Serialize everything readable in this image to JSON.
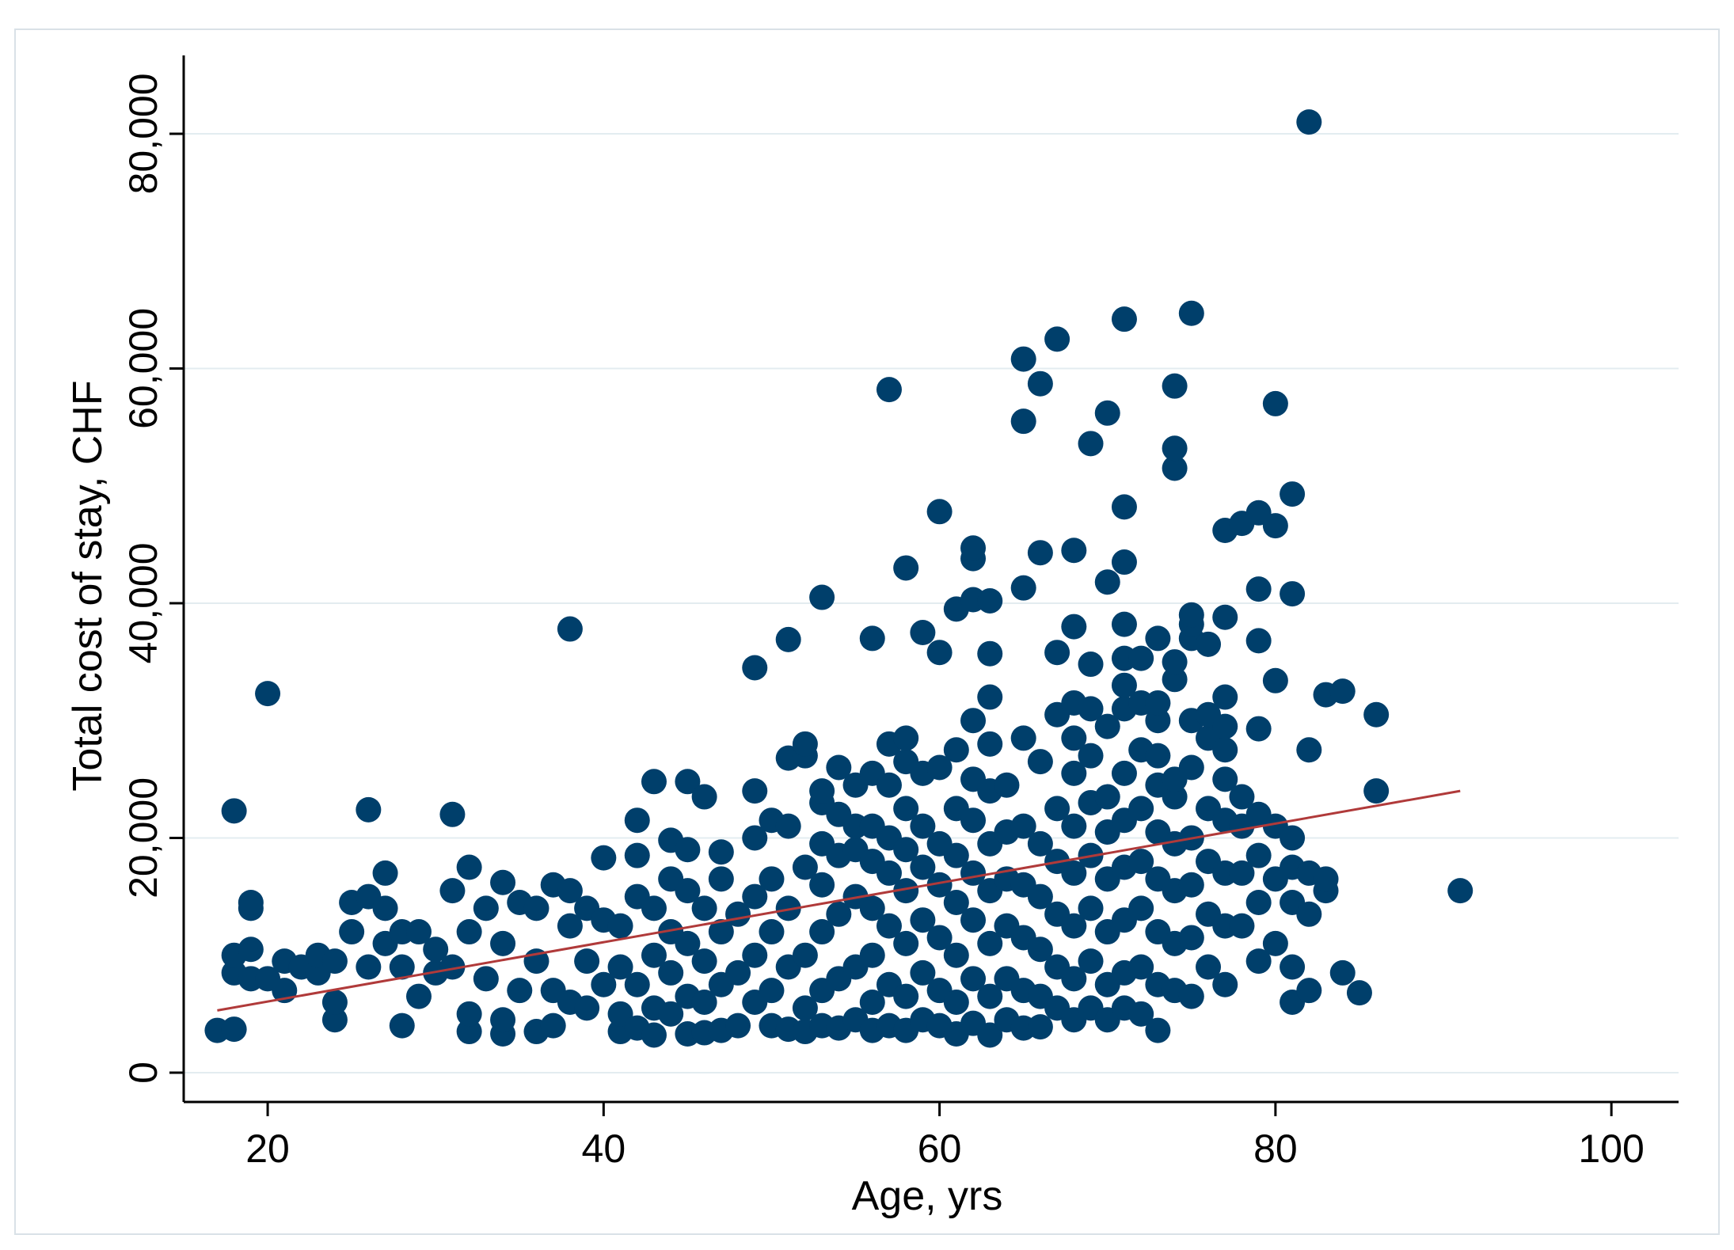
{
  "chart_data": {
    "type": "scatter",
    "xlabel": "Age, yrs",
    "ylabel": "Total cost of stay, CHF",
    "xlim": [
      15,
      104
    ],
    "ylim": [
      -2500,
      86000
    ],
    "x_ticks": [
      {
        "value": 20,
        "label": "20"
      },
      {
        "value": 40,
        "label": "40"
      },
      {
        "value": 60,
        "label": "60"
      },
      {
        "value": 80,
        "label": "80"
      },
      {
        "value": 100,
        "label": "100"
      }
    ],
    "y_ticks": [
      {
        "value": 0,
        "label": "0"
      },
      {
        "value": 20000,
        "label": "20,000"
      },
      {
        "value": 40000,
        "label": "40,000"
      },
      {
        "value": 60000,
        "label": "60,000"
      },
      {
        "value": 80000,
        "label": "80,000"
      }
    ],
    "grid": "horizontal",
    "marker_color": "#003f6b",
    "fit_line_color": "#b03a3a",
    "fit_line": {
      "x": [
        17,
        91
      ],
      "y": [
        5300,
        24000
      ]
    },
    "points": [
      [
        17,
        3600
      ],
      [
        18,
        3700
      ],
      [
        18,
        8500
      ],
      [
        18,
        10000
      ],
      [
        18,
        22300
      ],
      [
        19,
        8000
      ],
      [
        19,
        10500
      ],
      [
        19,
        14000
      ],
      [
        19,
        14500
      ],
      [
        20,
        32300
      ],
      [
        20,
        8000
      ],
      [
        21,
        7000
      ],
      [
        21,
        9500
      ],
      [
        22,
        9000
      ],
      [
        23,
        8500
      ],
      [
        23,
        10000
      ],
      [
        24,
        4500
      ],
      [
        24,
        6000
      ],
      [
        24,
        9500
      ],
      [
        25,
        12000
      ],
      [
        25,
        14500
      ],
      [
        26,
        9000
      ],
      [
        26,
        15000
      ],
      [
        26,
        22400
      ],
      [
        27,
        11000
      ],
      [
        27,
        14000
      ],
      [
        27,
        17000
      ],
      [
        28,
        4000
      ],
      [
        28,
        9000
      ],
      [
        28,
        12000
      ],
      [
        29,
        6500
      ],
      [
        29,
        12000
      ],
      [
        30,
        8500
      ],
      [
        30,
        10500
      ],
      [
        31,
        15500
      ],
      [
        31,
        22000
      ],
      [
        31,
        9000
      ],
      [
        32,
        3500
      ],
      [
        32,
        5000
      ],
      [
        32,
        12000
      ],
      [
        32,
        17500
      ],
      [
        33,
        8000
      ],
      [
        33,
        14000
      ],
      [
        34,
        3300
      ],
      [
        34,
        4500
      ],
      [
        34,
        11000
      ],
      [
        34,
        16200
      ],
      [
        35,
        7000
      ],
      [
        35,
        14500
      ],
      [
        36,
        3500
      ],
      [
        36,
        9500
      ],
      [
        36,
        14000
      ],
      [
        37,
        4000
      ],
      [
        37,
        7000
      ],
      [
        37,
        16000
      ],
      [
        38,
        37800
      ],
      [
        38,
        6000
      ],
      [
        38,
        12500
      ],
      [
        38,
        15500
      ],
      [
        39,
        5500
      ],
      [
        39,
        9500
      ],
      [
        39,
        14000
      ],
      [
        40,
        7500
      ],
      [
        40,
        13000
      ],
      [
        40,
        18300
      ],
      [
        41,
        3500
      ],
      [
        41,
        5000
      ],
      [
        41,
        9000
      ],
      [
        41,
        12500
      ],
      [
        42,
        3800
      ],
      [
        42,
        7500
      ],
      [
        42,
        15000
      ],
      [
        42,
        18500
      ],
      [
        42,
        21500
      ],
      [
        43,
        3200
      ],
      [
        43,
        5500
      ],
      [
        43,
        10000
      ],
      [
        43,
        14000
      ],
      [
        43,
        24800
      ],
      [
        44,
        5000
      ],
      [
        44,
        8500
      ],
      [
        44,
        12000
      ],
      [
        44,
        16500
      ],
      [
        44,
        19800
      ],
      [
        45,
        3300
      ],
      [
        45,
        6500
      ],
      [
        45,
        11000
      ],
      [
        45,
        15500
      ],
      [
        45,
        19000
      ],
      [
        45,
        24800
      ],
      [
        46,
        3400
      ],
      [
        46,
        6000
      ],
      [
        46,
        9500
      ],
      [
        46,
        14000
      ],
      [
        46,
        23500
      ],
      [
        47,
        3600
      ],
      [
        47,
        7500
      ],
      [
        47,
        12000
      ],
      [
        47,
        16500
      ],
      [
        47,
        18800
      ],
      [
        48,
        4000
      ],
      [
        48,
        8500
      ],
      [
        48,
        13500
      ],
      [
        49,
        6000
      ],
      [
        49,
        10000
      ],
      [
        49,
        15000
      ],
      [
        49,
        20000
      ],
      [
        49,
        24000
      ],
      [
        49,
        34500
      ],
      [
        50,
        4000
      ],
      [
        50,
        7000
      ],
      [
        50,
        12000
      ],
      [
        50,
        16500
      ],
      [
        50,
        21500
      ],
      [
        51,
        3700
      ],
      [
        51,
        9000
      ],
      [
        51,
        14000
      ],
      [
        51,
        21000
      ],
      [
        51,
        26800
      ],
      [
        51,
        36900
      ],
      [
        52,
        3500
      ],
      [
        52,
        5500
      ],
      [
        52,
        10000
      ],
      [
        52,
        17500
      ],
      [
        52,
        27000
      ],
      [
        52,
        28000
      ],
      [
        53,
        4000
      ],
      [
        53,
        7000
      ],
      [
        53,
        12000
      ],
      [
        53,
        16000
      ],
      [
        53,
        19500
      ],
      [
        53,
        23000
      ],
      [
        53,
        24000
      ],
      [
        53,
        40500
      ],
      [
        54,
        3800
      ],
      [
        54,
        8000
      ],
      [
        54,
        13500
      ],
      [
        54,
        18500
      ],
      [
        54,
        22000
      ],
      [
        54,
        26000
      ],
      [
        55,
        4500
      ],
      [
        55,
        9000
      ],
      [
        55,
        15000
      ],
      [
        55,
        19000
      ],
      [
        55,
        21000
      ],
      [
        55,
        24500
      ],
      [
        56,
        3600
      ],
      [
        56,
        6000
      ],
      [
        56,
        10000
      ],
      [
        56,
        14000
      ],
      [
        56,
        18000
      ],
      [
        56,
        21000
      ],
      [
        56,
        25500
      ],
      [
        56,
        37000
      ],
      [
        57,
        4000
      ],
      [
        57,
        7500
      ],
      [
        57,
        12500
      ],
      [
        57,
        17000
      ],
      [
        57,
        20000
      ],
      [
        57,
        24500
      ],
      [
        57,
        28000
      ],
      [
        57,
        58200
      ],
      [
        58,
        3600
      ],
      [
        58,
        6500
      ],
      [
        58,
        11000
      ],
      [
        58,
        15500
      ],
      [
        58,
        19000
      ],
      [
        58,
        22500
      ],
      [
        58,
        26500
      ],
      [
        58,
        28500
      ],
      [
        58,
        43000
      ],
      [
        59,
        4500
      ],
      [
        59,
        8500
      ],
      [
        59,
        13000
      ],
      [
        59,
        17500
      ],
      [
        59,
        21000
      ],
      [
        59,
        25500
      ],
      [
        59,
        37500
      ],
      [
        60,
        4000
      ],
      [
        60,
        7000
      ],
      [
        60,
        11500
      ],
      [
        60,
        16000
      ],
      [
        60,
        19500
      ],
      [
        60,
        26000
      ],
      [
        60,
        35800
      ],
      [
        60,
        47800
      ],
      [
        61,
        3300
      ],
      [
        61,
        6000
      ],
      [
        61,
        10000
      ],
      [
        61,
        14500
      ],
      [
        61,
        18500
      ],
      [
        61,
        22500
      ],
      [
        61,
        27500
      ],
      [
        61,
        39500
      ],
      [
        62,
        4200
      ],
      [
        62,
        8000
      ],
      [
        62,
        13000
      ],
      [
        62,
        17000
      ],
      [
        62,
        21500
      ],
      [
        62,
        25000
      ],
      [
        62,
        30000
      ],
      [
        62,
        40300
      ],
      [
        62,
        43800
      ],
      [
        62,
        44700
      ],
      [
        63,
        3200
      ],
      [
        63,
        6500
      ],
      [
        63,
        11000
      ],
      [
        63,
        15500
      ],
      [
        63,
        19500
      ],
      [
        63,
        24000
      ],
      [
        63,
        28000
      ],
      [
        63,
        32000
      ],
      [
        63,
        35700
      ],
      [
        63,
        40200
      ],
      [
        64,
        4500
      ],
      [
        64,
        8000
      ],
      [
        64,
        12500
      ],
      [
        64,
        16500
      ],
      [
        64,
        20500
      ],
      [
        64,
        24500
      ],
      [
        65,
        3800
      ],
      [
        65,
        7000
      ],
      [
        65,
        11500
      ],
      [
        65,
        16000
      ],
      [
        65,
        21000
      ],
      [
        65,
        28500
      ],
      [
        65,
        41300
      ],
      [
        65,
        55500
      ],
      [
        65,
        60800
      ],
      [
        66,
        3900
      ],
      [
        66,
        6500
      ],
      [
        66,
        10500
      ],
      [
        66,
        15000
      ],
      [
        66,
        19500
      ],
      [
        66,
        26500
      ],
      [
        66,
        44300
      ],
      [
        66,
        58700
      ],
      [
        67,
        5500
      ],
      [
        67,
        9000
      ],
      [
        67,
        13500
      ],
      [
        67,
        18000
      ],
      [
        67,
        22500
      ],
      [
        67,
        30500
      ],
      [
        67,
        35800
      ],
      [
        67,
        62500
      ],
      [
        68,
        4500
      ],
      [
        68,
        8000
      ],
      [
        68,
        12500
      ],
      [
        68,
        17000
      ],
      [
        68,
        21000
      ],
      [
        68,
        25500
      ],
      [
        68,
        28500
      ],
      [
        68,
        31500
      ],
      [
        68,
        38000
      ],
      [
        68,
        44500
      ],
      [
        69,
        5500
      ],
      [
        69,
        9500
      ],
      [
        69,
        14000
      ],
      [
        69,
        18500
      ],
      [
        69,
        23000
      ],
      [
        69,
        27000
      ],
      [
        69,
        31000
      ],
      [
        69,
        34800
      ],
      [
        69,
        53600
      ],
      [
        70,
        4500
      ],
      [
        70,
        7500
      ],
      [
        70,
        12000
      ],
      [
        70,
        16500
      ],
      [
        70,
        20500
      ],
      [
        70,
        23500
      ],
      [
        70,
        29500
      ],
      [
        70,
        41800
      ],
      [
        70,
        56200
      ],
      [
        71,
        5500
      ],
      [
        71,
        8500
      ],
      [
        71,
        13000
      ],
      [
        71,
        17500
      ],
      [
        71,
        21500
      ],
      [
        71,
        25500
      ],
      [
        71,
        31000
      ],
      [
        71,
        33000
      ],
      [
        71,
        35300
      ],
      [
        71,
        38200
      ],
      [
        71,
        43500
      ],
      [
        71,
        48200
      ],
      [
        71,
        64200
      ],
      [
        72,
        5000
      ],
      [
        72,
        9000
      ],
      [
        72,
        14000
      ],
      [
        72,
        18000
      ],
      [
        72,
        22500
      ],
      [
        72,
        27500
      ],
      [
        72,
        31500
      ],
      [
        72,
        35300
      ],
      [
        73,
        3600
      ],
      [
        73,
        7500
      ],
      [
        73,
        12000
      ],
      [
        73,
        16500
      ],
      [
        73,
        20500
      ],
      [
        73,
        24500
      ],
      [
        73,
        27000
      ],
      [
        73,
        30000
      ],
      [
        73,
        31500
      ],
      [
        73,
        37000
      ],
      [
        74,
        7000
      ],
      [
        74,
        11000
      ],
      [
        74,
        15500
      ],
      [
        74,
        19500
      ],
      [
        74,
        23500
      ],
      [
        74,
        25000
      ],
      [
        74,
        33500
      ],
      [
        74,
        35000
      ],
      [
        74,
        51500
      ],
      [
        74,
        53200
      ],
      [
        74,
        58500
      ],
      [
        75,
        6500
      ],
      [
        75,
        11500
      ],
      [
        75,
        16000
      ],
      [
        75,
        20000
      ],
      [
        75,
        26000
      ],
      [
        75,
        30000
      ],
      [
        75,
        37000
      ],
      [
        75,
        38200
      ],
      [
        75,
        39000
      ],
      [
        75,
        64700
      ],
      [
        76,
        9000
      ],
      [
        76,
        13500
      ],
      [
        76,
        18000
      ],
      [
        76,
        22500
      ],
      [
        76,
        28500
      ],
      [
        76,
        30500
      ],
      [
        76,
        36500
      ],
      [
        77,
        7500
      ],
      [
        77,
        12500
      ],
      [
        77,
        17000
      ],
      [
        77,
        21500
      ],
      [
        77,
        25000
      ],
      [
        77,
        27500
      ],
      [
        77,
        29500
      ],
      [
        77,
        32000
      ],
      [
        77,
        38800
      ],
      [
        77,
        46200
      ],
      [
        78,
        12500
      ],
      [
        78,
        17000
      ],
      [
        78,
        21000
      ],
      [
        78,
        23500
      ],
      [
        78,
        46800
      ],
      [
        79,
        9500
      ],
      [
        79,
        14500
      ],
      [
        79,
        18500
      ],
      [
        79,
        22000
      ],
      [
        79,
        29300
      ],
      [
        79,
        36800
      ],
      [
        79,
        41200
      ],
      [
        79,
        47700
      ],
      [
        80,
        11000
      ],
      [
        80,
        16500
      ],
      [
        80,
        21000
      ],
      [
        80,
        33400
      ],
      [
        80,
        46600
      ],
      [
        80,
        57000
      ],
      [
        81,
        6000
      ],
      [
        81,
        9000
      ],
      [
        81,
        14500
      ],
      [
        81,
        17500
      ],
      [
        81,
        20000
      ],
      [
        81,
        40800
      ],
      [
        81,
        49300
      ],
      [
        82,
        7000
      ],
      [
        82,
        13500
      ],
      [
        82,
        17000
      ],
      [
        82,
        27500
      ],
      [
        82,
        81000
      ],
      [
        83,
        15500
      ],
      [
        83,
        16500
      ],
      [
        83,
        32200
      ],
      [
        84,
        8500
      ],
      [
        84,
        32500
      ],
      [
        85,
        6800
      ],
      [
        86,
        24000
      ],
      [
        86,
        30500
      ],
      [
        91,
        15500
      ]
    ]
  }
}
